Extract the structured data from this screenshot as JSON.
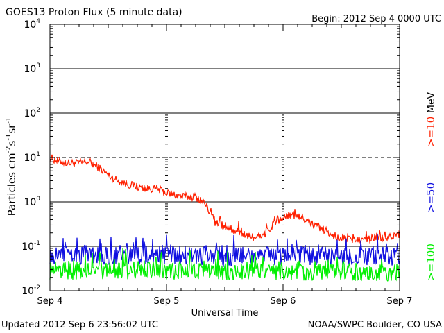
{
  "header": {
    "title": "GOES13 Proton Flux (5 minute data)",
    "begin": "Begin: 2012 Sep 4 0000 UTC"
  },
  "footer": {
    "updated": "Updated 2012 Sep  6 23:56:02 UTC",
    "source": "NOAA/SWPC Boulder, CO USA"
  },
  "colors": {
    "ge10": "#ff2000",
    "ge50": "#1010e0",
    "ge100": "#00f000",
    "axis": "#000000"
  },
  "chart_data": {
    "type": "line",
    "title": "GOES13 Proton Flux (5 minute data)",
    "xlabel": "Universal Time",
    "ylabel_parts": [
      "Particles cm",
      "-2",
      "s",
      "-1",
      "sr",
      "-1"
    ],
    "y_scale": "log",
    "ylim": [
      0.01,
      10000
    ],
    "y_ticks": [
      {
        "base": "10",
        "exp": "-2",
        "value": 0.01
      },
      {
        "base": "10",
        "exp": "-1",
        "value": 0.1
      },
      {
        "base": "10",
        "exp": "0",
        "value": 1
      },
      {
        "base": "10",
        "exp": "1",
        "value": 10
      },
      {
        "base": "10",
        "exp": "2",
        "value": 100
      },
      {
        "base": "10",
        "exp": "3",
        "value": 1000
      },
      {
        "base": "10",
        "exp": "4",
        "value": 10000
      }
    ],
    "x_range": [
      "2012-09-04T00:00",
      "2012-09-07T00:00"
    ],
    "x_ticks": [
      {
        "label": "Sep 4",
        "value": "2012-09-04"
      },
      {
        "label": "Sep 5",
        "value": "2012-09-05"
      },
      {
        "label": "Sep 6",
        "value": "2012-09-06"
      },
      {
        "label": "Sep 7",
        "value": "2012-09-07"
      }
    ],
    "reference_lines": [
      {
        "value": 10,
        "style": "dashed"
      },
      {
        "value": 0.1,
        "style": "solid"
      }
    ],
    "solid_grid_values": [
      1,
      100,
      1000
    ],
    "units_label": "MeV",
    "series": [
      {
        "name": ">=10",
        "color": "#ff2000",
        "x": [
          "2012-09-04T00:00",
          "2012-09-04T02:00",
          "2012-09-04T04:00",
          "2012-09-04T06:00",
          "2012-09-04T08:00",
          "2012-09-04T10:00",
          "2012-09-04T12:00",
          "2012-09-04T14:00",
          "2012-09-04T16:00",
          "2012-09-04T18:00",
          "2012-09-04T20:00",
          "2012-09-04T22:00",
          "2012-09-05T00:00",
          "2012-09-05T02:00",
          "2012-09-05T04:00",
          "2012-09-05T06:00",
          "2012-09-05T07:00",
          "2012-09-05T08:00",
          "2012-09-05T10:00",
          "2012-09-05T12:00",
          "2012-09-05T14:00",
          "2012-09-05T16:00",
          "2012-09-05T18:00",
          "2012-09-05T20:00",
          "2012-09-05T22:00",
          "2012-09-06T00:00",
          "2012-09-06T02:00",
          "2012-09-06T04:00",
          "2012-09-06T06:00",
          "2012-09-06T08:00",
          "2012-09-06T10:00",
          "2012-09-06T12:00",
          "2012-09-06T14:00",
          "2012-09-06T16:00",
          "2012-09-06T18:00",
          "2012-09-06T20:00",
          "2012-09-06T22:00",
          "2012-09-07T00:00"
        ],
        "values": [
          10,
          8,
          7.5,
          7.5,
          8,
          6,
          4,
          3,
          2.5,
          2.2,
          2,
          2,
          1.6,
          1.4,
          1.3,
          1.3,
          1.1,
          0.9,
          0.35,
          0.28,
          0.22,
          0.18,
          0.16,
          0.18,
          0.3,
          0.45,
          0.5,
          0.42,
          0.32,
          0.25,
          0.18,
          0.16,
          0.14,
          0.14,
          0.15,
          0.15,
          0.16,
          0.17
        ]
      },
      {
        "name": ">=50",
        "color": "#1010e0",
        "x": [
          "2012-09-04T00:00",
          "2012-09-04T12:00",
          "2012-09-05T00:00",
          "2012-09-05T12:00",
          "2012-09-06T00:00",
          "2012-09-06T12:00",
          "2012-09-07T00:00"
        ],
        "values": [
          0.065,
          0.065,
          0.063,
          0.06,
          0.062,
          0.06,
          0.06
        ]
      },
      {
        "name": ">=100",
        "color": "#00f000",
        "x": [
          "2012-09-04T00:00",
          "2012-09-04T12:00",
          "2012-09-05T00:00",
          "2012-09-05T12:00",
          "2012-09-06T00:00",
          "2012-09-06T12:00",
          "2012-09-07T00:00"
        ],
        "values": [
          0.028,
          0.028,
          0.027,
          0.027,
          0.026,
          0.026,
          0.026
        ]
      }
    ]
  }
}
